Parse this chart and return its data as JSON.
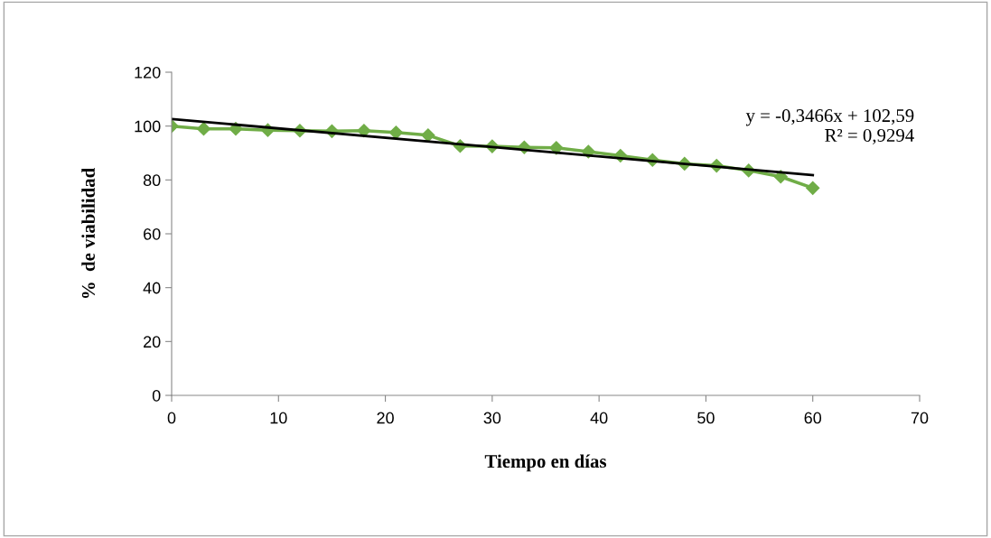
{
  "chart_data": {
    "type": "line",
    "xlabel": "Tiempo en días",
    "ylabel": "%  de viabilidad",
    "xlim": [
      0,
      70
    ],
    "xticks": [
      0,
      10,
      20,
      30,
      40,
      50,
      60,
      70
    ],
    "ylim": [
      0,
      120
    ],
    "yticks": [
      0,
      20,
      40,
      60,
      80,
      100,
      120
    ],
    "grid": false,
    "legend": false,
    "marker": "diamond",
    "line_style": "solid",
    "series": [
      {
        "color": "#70ad47",
        "x": [
          0,
          3,
          6,
          9,
          12,
          15,
          18,
          21,
          24,
          27,
          30,
          33,
          36,
          39,
          42,
          45,
          48,
          51,
          54,
          57,
          60
        ],
        "values": [
          100,
          99,
          99,
          98.5,
          98.3,
          98.1,
          98.3,
          97.6,
          96.6,
          92.6,
          92.5,
          92.1,
          91.9,
          90.5,
          89,
          87.4,
          86,
          85.3,
          83.5,
          81.2,
          77
        ]
      },
      {
        "type": "line",
        "color": "#000000",
        "marker": "none",
        "x": [
          0,
          60
        ],
        "values": [
          102.6,
          81.8
        ]
      }
    ],
    "annotations": [
      "y = -0,3466x + 102,59\nR² = 0,9294"
    ]
  }
}
